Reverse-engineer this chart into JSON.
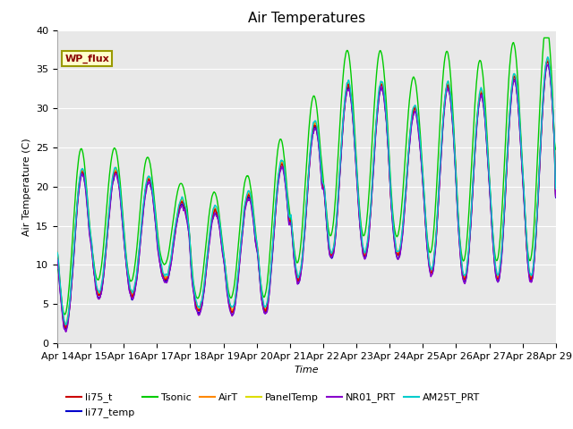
{
  "title": "Air Temperatures",
  "xlabel": "Time",
  "ylabel": "Air Temperature (C)",
  "ylim": [
    0,
    40
  ],
  "xtick_labels": [
    "Apr 14",
    "Apr 15",
    "Apr 16",
    "Apr 17",
    "Apr 18",
    "Apr 19",
    "Apr 20",
    "Apr 21",
    "Apr 22",
    "Apr 23",
    "Apr 24",
    "Apr 25",
    "Apr 26",
    "Apr 27",
    "Apr 28",
    "Apr 29"
  ],
  "ytick_labels": [
    "0",
    "5",
    "10",
    "15",
    "20",
    "25",
    "30",
    "35",
    "40"
  ],
  "plot_bg_color": "#e8e8e8",
  "fig_bg_color": "#ffffff",
  "series": {
    "li75_t": {
      "color": "#cc0000",
      "lw": 1.0,
      "zorder": 6
    },
    "li77_temp": {
      "color": "#0000cc",
      "lw": 1.0,
      "zorder": 5
    },
    "Tsonic": {
      "color": "#00cc00",
      "lw": 1.0,
      "zorder": 4
    },
    "AirT": {
      "color": "#ff8800",
      "lw": 1.0,
      "zorder": 3
    },
    "PanelTemp": {
      "color": "#dddd00",
      "lw": 1.0,
      "zorder": 2
    },
    "NR01_PRT": {
      "color": "#8800cc",
      "lw": 1.0,
      "zorder": 7
    },
    "AM25T_PRT": {
      "color": "#00cccc",
      "lw": 1.0,
      "zorder": 8
    }
  },
  "annotation_text": "WP_flux",
  "title_fontsize": 11,
  "axis_fontsize": 8,
  "tick_fontsize": 8,
  "legend_fontsize": 8
}
